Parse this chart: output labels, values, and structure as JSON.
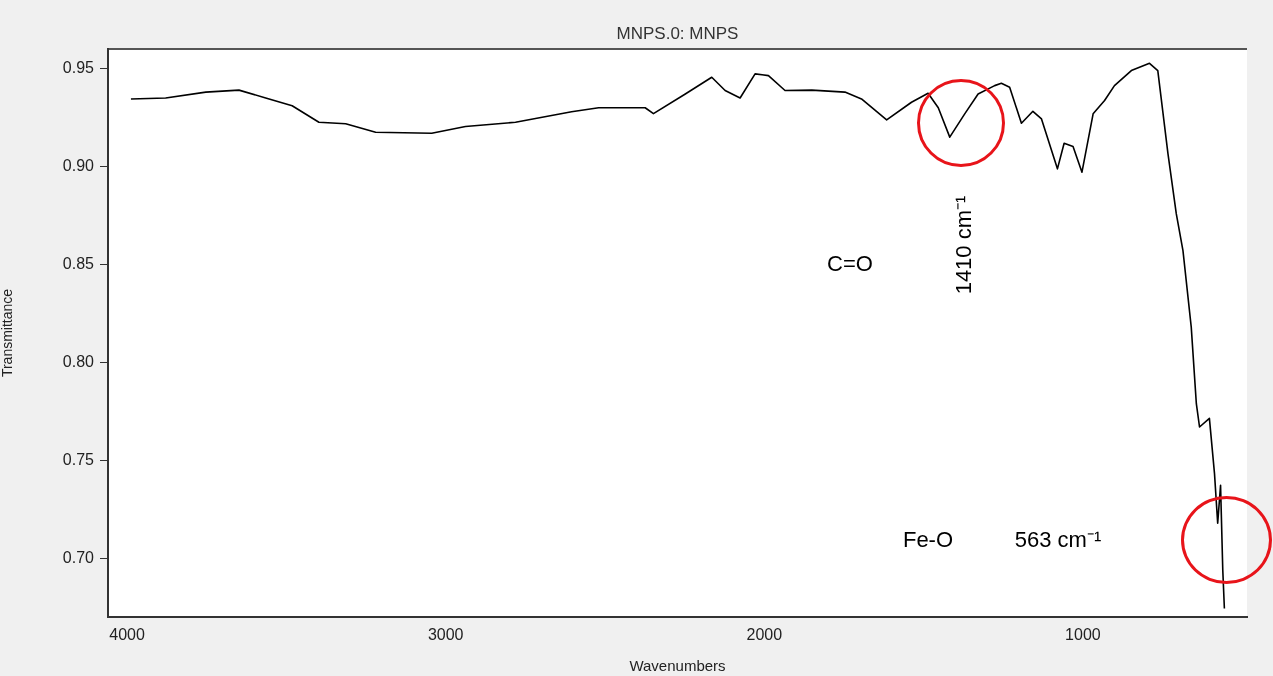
{
  "chart_data": {
    "type": "line",
    "title": "MNPS.0: MNPS",
    "xlabel": "Wavenumbers",
    "ylabel": "Transmittance",
    "x": [
      3988,
      3879,
      3753,
      3649,
      3565,
      3482,
      3398,
      3314,
      3220,
      3044,
      2938,
      2781,
      2605,
      2520,
      2478,
      2374,
      2348,
      2248,
      2165,
      2123,
      2076,
      2029,
      1987,
      1935,
      1851,
      1747,
      1695,
      1616,
      1538,
      1486,
      1454,
      1418,
      1371,
      1329,
      1277,
      1256,
      1230,
      1193,
      1157,
      1130,
      1080,
      1059,
      1031,
      1003,
      968,
      932,
      901,
      848,
      791,
      765,
      733,
      707,
      686,
      660,
      644,
      634,
      603,
      587,
      577,
      568,
      561,
      556
    ],
    "series": [
      {
        "color": "#000000",
        "values": [
          0.9345,
          0.935,
          0.938,
          0.939,
          0.935,
          0.931,
          0.9226,
          0.9218,
          0.9175,
          0.917,
          0.9204,
          0.9226,
          0.928,
          0.93,
          0.93,
          0.93,
          0.927,
          0.937,
          0.9456,
          0.9388,
          0.935,
          0.9473,
          0.9464,
          0.9388,
          0.939,
          0.938,
          0.9345,
          0.9238,
          0.9328,
          0.9374,
          0.93,
          0.915,
          0.9269,
          0.937,
          0.9413,
          0.9425,
          0.9405,
          0.9221,
          0.9282,
          0.9243,
          0.8988,
          0.9119,
          0.9102,
          0.8971,
          0.9269,
          0.9337,
          0.9413,
          0.949,
          0.9527,
          0.949,
          0.9065,
          0.8759,
          0.8571,
          0.818,
          0.7789,
          0.767,
          0.7714,
          0.7432,
          0.7179,
          0.7372,
          0.6939,
          0.6743
        ]
      }
    ],
    "xlim": [
      4060,
      485
    ],
    "xticks": [
      4000,
      3000,
      2000,
      1000
    ],
    "ylim": [
      0.67,
      0.96
    ],
    "yticks": [
      {
        "value": 0.7,
        "label": "0.70"
      },
      0.75,
      {
        "value": 0.8,
        "label": "0.80"
      },
      0.85,
      {
        "value": 0.9,
        "label": "0.90"
      },
      0.95
    ],
    "grid": false,
    "legend": false,
    "marker": "none",
    "line_style": "solid",
    "annotations": [
      "C=O",
      "1410 cm⁻¹",
      "Fe-O",
      "563 cm⁻¹"
    ]
  }
}
